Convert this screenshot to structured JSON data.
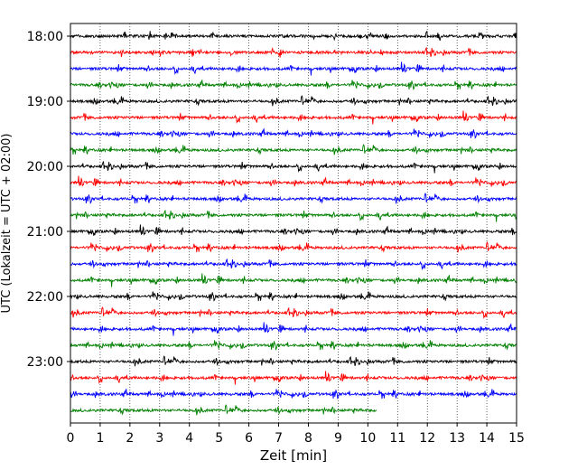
{
  "chart_data": {
    "type": "line",
    "title": "",
    "xlabel": "Zeit  [min]",
    "ylabel": "UTC (Lokalzeit = UTC + 02:00)",
    "xlim": [
      0,
      15
    ],
    "x_ticks": [
      "0",
      "1",
      "2",
      "3",
      "4",
      "5",
      "6",
      "7",
      "8",
      "9",
      "10",
      "11",
      "12",
      "13",
      "14",
      "15"
    ],
    "y_tick_labels": [
      "18:00",
      "19:00",
      "20:00",
      "21:00",
      "22:00",
      "23:00"
    ],
    "grid": "vertical-dotted",
    "row_interval_minutes": 15,
    "rows": [
      {
        "start": "18:00",
        "color": "#000000",
        "end_min": 15
      },
      {
        "start": "18:15",
        "color": "#ff0000",
        "end_min": 15
      },
      {
        "start": "18:30",
        "color": "#0000ff",
        "end_min": 15
      },
      {
        "start": "18:45",
        "color": "#008000",
        "end_min": 15
      },
      {
        "start": "19:00",
        "color": "#000000",
        "end_min": 15
      },
      {
        "start": "19:15",
        "color": "#ff0000",
        "end_min": 15
      },
      {
        "start": "19:30",
        "color": "#0000ff",
        "end_min": 15
      },
      {
        "start": "19:45",
        "color": "#008000",
        "end_min": 15
      },
      {
        "start": "20:00",
        "color": "#000000",
        "end_min": 15
      },
      {
        "start": "20:15",
        "color": "#ff0000",
        "end_min": 15
      },
      {
        "start": "20:30",
        "color": "#0000ff",
        "end_min": 15
      },
      {
        "start": "20:45",
        "color": "#008000",
        "end_min": 15
      },
      {
        "start": "21:00",
        "color": "#000000",
        "end_min": 15
      },
      {
        "start": "21:15",
        "color": "#ff0000",
        "end_min": 15
      },
      {
        "start": "21:30",
        "color": "#0000ff",
        "end_min": 15
      },
      {
        "start": "21:45",
        "color": "#008000",
        "end_min": 15
      },
      {
        "start": "22:00",
        "color": "#000000",
        "end_min": 15
      },
      {
        "start": "22:15",
        "color": "#ff0000",
        "end_min": 15
      },
      {
        "start": "22:30",
        "color": "#0000ff",
        "end_min": 15
      },
      {
        "start": "22:45",
        "color": "#008000",
        "end_min": 15
      },
      {
        "start": "23:00",
        "color": "#000000",
        "end_min": 15
      },
      {
        "start": "23:15",
        "color": "#ff0000",
        "end_min": 15
      },
      {
        "start": "23:30",
        "color": "#0000ff",
        "end_min": 15
      },
      {
        "start": "23:45",
        "color": "#008000",
        "end_min": 10.3
      }
    ]
  }
}
